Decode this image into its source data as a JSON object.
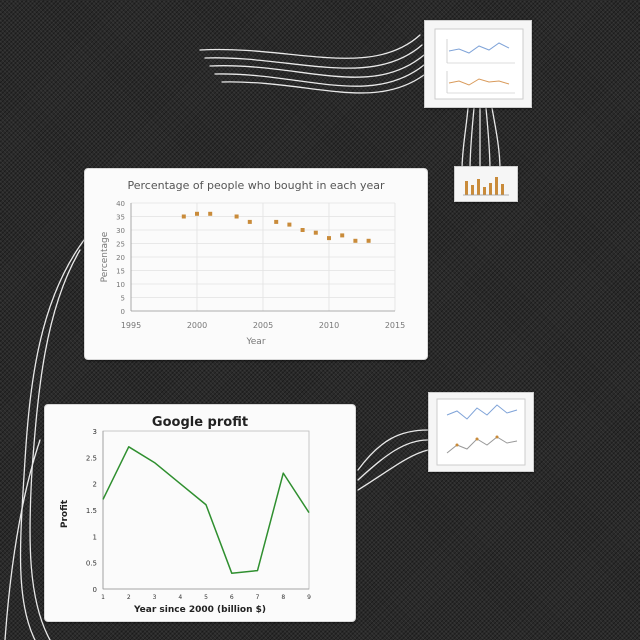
{
  "chart_data": [
    {
      "type": "scatter",
      "title": "Percentage of people who bought in each year",
      "xlabel": "Year",
      "ylabel": "Percentage",
      "xlim": [
        1995,
        2015
      ],
      "ylim": [
        0,
        40
      ],
      "x_ticks": [
        1995,
        2000,
        2005,
        2010,
        2015
      ],
      "y_ticks": [
        0,
        5,
        10,
        15,
        20,
        25,
        30,
        35,
        40
      ],
      "grid": true,
      "series": [
        {
          "color": "#c98b3a",
          "x": [
            1999,
            2000,
            2001,
            2003,
            2004,
            2006,
            2007,
            2008,
            2009,
            2010,
            2011,
            2012,
            2013
          ],
          "y": [
            35,
            36,
            36,
            35,
            33,
            33,
            32,
            30,
            29,
            27,
            28,
            26,
            26
          ]
        }
      ]
    },
    {
      "type": "line",
      "title": "Google profit",
      "xlabel": "Year since 2000 (billion $)",
      "ylabel": "Profit",
      "xlim": [
        1,
        9
      ],
      "ylim": [
        0,
        3
      ],
      "x_ticks": [
        1,
        2,
        3,
        4,
        5,
        6,
        7,
        8,
        9
      ],
      "y_ticks": [
        0,
        0.5,
        1,
        1.5,
        2,
        2.5,
        3
      ],
      "series": [
        {
          "color": "#2f8f2f",
          "x": [
            1,
            2,
            3,
            4,
            5,
            6,
            7,
            8,
            9
          ],
          "y": [
            1.7,
            2.7,
            2.4,
            2.0,
            1.6,
            0.3,
            0.35,
            2.2,
            1.45
          ]
        }
      ]
    }
  ],
  "colors": {
    "background": "#2a2a2a",
    "card": "#fbfbfb",
    "accent_orange": "#c98b3a",
    "accent_green": "#2f8f2f",
    "wire": "#e8e8e8"
  }
}
